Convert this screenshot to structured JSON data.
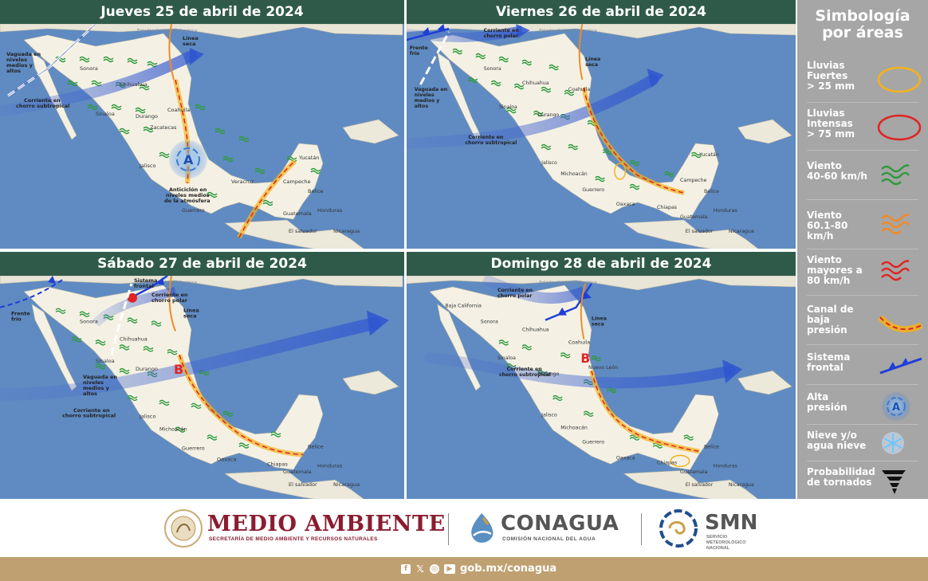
{
  "panels": [
    {
      "title": "Jueves 25 de abril de 2024",
      "labels": {
        "usa": "Estados Unidos de América",
        "linea_seca": "Línea\nseca",
        "vaguada": "Vaguada en\nniveles\nmedios y\naltos",
        "corriente_sub": "Corriente en\nchorro subtropical",
        "anticiclon": "Anticiclón en\nniveles medios\nde la atmósfera",
        "center_letter": "A",
        "belice": "Belice",
        "guatemala": "Guatemala",
        "honduras": "Honduras",
        "elsalvador": "El salvador",
        "nicaragua": "Nicaragua",
        "states": [
          "Sonora",
          "Chihuahua",
          "Coahuila",
          "Sinaloa",
          "Durango",
          "Zacatecas",
          "Jalisco",
          "Guerrero",
          "Veracruz",
          "Campeche",
          "Yucatán"
        ]
      }
    },
    {
      "title": "Viernes 26 de abril de 2024",
      "labels": {
        "usa": "Estados Unidos de América",
        "linea_seca": "Línea\nseca",
        "corriente_polar": "Corriente en\nchorro polar",
        "frente_frio": "Frente\nfrío",
        "vaguada": "Vaguada en\nniveles\nmedios y\naltos",
        "corriente_sub": "Corriente en\nchorro subtropical",
        "belice": "Belice",
        "guatemala": "Guatemala",
        "honduras": "Honduras",
        "elsalvador": "El salvador",
        "nicaragua": "Nicaragua",
        "states": [
          "Sonora",
          "Chihuahua",
          "Coahuila",
          "Sinaloa",
          "Durango",
          "Jalisco",
          "Michoacán",
          "Guerrero",
          "Oaxaca",
          "Chiapas",
          "Campeche",
          "Yucatán"
        ]
      }
    },
    {
      "title": "Sábado 27 de abril de 2024",
      "labels": {
        "usa": "Estados Unidos de América",
        "sistema_frontal": "Sistema\nfrontal",
        "corriente_polar": "Corriente en\nchorro polar",
        "linea_seca": "Línea\nseca",
        "frente_frio": "Frente\nfrío",
        "vaguada": "Vaguada en\nniveles\nmedios y\naltos",
        "corriente_sub": "Corriente en\nchorro subtropical",
        "center_letter": "B",
        "belice": "Belice",
        "guatemala": "Guatemala",
        "honduras": "Honduras",
        "elsalvador": "El salvador",
        "nicaragua": "Nicaragua",
        "states": [
          "Sonora",
          "Chihuahua",
          "Sinaloa",
          "Durango",
          "Jalisco",
          "Michoacán",
          "Guerrero",
          "Oaxaca",
          "Chiapas"
        ]
      }
    },
    {
      "title": "Domingo 28 de abril de 2024",
      "labels": {
        "usa": "Estados Unidos de América",
        "corriente_polar": "Corriente en\nchorro polar",
        "linea_seca": "Línea\nseca",
        "corriente_sub": "Corriente en\nchorro subtropical",
        "center_letter": "B",
        "belice": "Belice",
        "guatemala": "Guatemala",
        "honduras": "Honduras",
        "elsalvador": "El salvador",
        "nicaragua": "Nicaragua",
        "states": [
          "Baja California",
          "Sonora",
          "Chihuahua",
          "Coahuila",
          "Nuevo León",
          "Sinaloa",
          "Durango",
          "Jalisco",
          "Michoacán",
          "Guerrero",
          "Oaxaca",
          "Chiapas"
        ]
      }
    }
  ],
  "legend": {
    "title": "Simbología\npor áreas",
    "items": [
      {
        "label": "Lluvias\nFuertes\n> 25 mm",
        "icon": "yellow-ellipse-icon",
        "color": "#f5b21a"
      },
      {
        "label": "Lluvias\nIntensas\n> 75 mm",
        "icon": "red-ellipse-icon",
        "color": "#e02424"
      },
      {
        "label": "Viento\n40-60 km/h",
        "icon": "wind-green-icon",
        "color": "#2e9a3c"
      },
      {
        "label": "Viento\n60.1-80 km/h",
        "icon": "wind-orange-icon",
        "color": "#f08a24"
      },
      {
        "label": "Viento\nmayores a\n80 km/h",
        "icon": "wind-red-icon",
        "color": "#e02424"
      },
      {
        "label": "Canal de\nbaja\npresión",
        "icon": "trough-icon",
        "color": "#f5b21a"
      },
      {
        "label": "Sistema\nfrontal",
        "icon": "front-icon",
        "color": "#1f3fd6"
      },
      {
        "label": "Alta\npresión",
        "icon": "high-pressure-icon",
        "color": "#3a7bd5"
      },
      {
        "label": "Nieve y/o\nagua nieve",
        "icon": "snowflake-icon",
        "color": "#6ec6ff"
      },
      {
        "label": "Probabilidad\nde tornados",
        "icon": "tornado-icon",
        "color": "#111111"
      }
    ]
  },
  "footer": {
    "medio_ambiente": "MEDIO AMBIENTE",
    "medio_ambiente_sub": "SECRETARÍA DE MEDIO AMBIENTE Y RECURSOS NATURALES",
    "conagua": "CONAGUA",
    "conagua_sub": "COMISIÓN NACIONAL DEL AGUA",
    "smn": "SMN",
    "smn_sub": "SERVICIO\nMETEOROLÓGICO\nNACIONAL",
    "url": "gob.mx/conagua",
    "social_icons": [
      "facebook-icon",
      "x-icon",
      "instagram-icon",
      "youtube-icon"
    ]
  }
}
